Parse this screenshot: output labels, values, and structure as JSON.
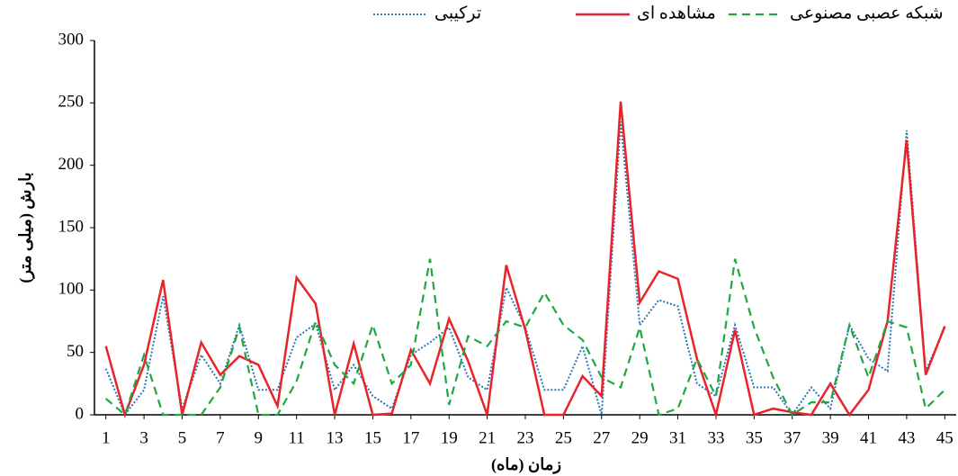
{
  "chart_data": {
    "type": "line",
    "xlabel": "زمان (ماه)",
    "ylabel": "بارش (میلی متر)",
    "x": [
      1,
      2,
      3,
      4,
      5,
      6,
      7,
      8,
      9,
      10,
      11,
      12,
      13,
      14,
      15,
      16,
      17,
      18,
      19,
      20,
      21,
      22,
      23,
      24,
      25,
      26,
      27,
      28,
      29,
      30,
      31,
      32,
      33,
      34,
      35,
      36,
      37,
      38,
      39,
      40,
      41,
      42,
      43,
      44,
      45
    ],
    "xlim": [
      0.4,
      45.6
    ],
    "xticks": [
      1,
      3,
      5,
      7,
      9,
      11,
      13,
      15,
      17,
      19,
      21,
      23,
      25,
      27,
      29,
      31,
      33,
      35,
      37,
      39,
      41,
      43,
      45
    ],
    "ylim": [
      0,
      300
    ],
    "yticks": [
      0,
      50,
      100,
      150,
      200,
      250,
      300
    ],
    "series": [
      {
        "name": "ترکیبی",
        "color": "#2e75b6",
        "dash": "dotted",
        "values": [
          37,
          0,
          20,
          95,
          5,
          48,
          25,
          72,
          20,
          20,
          62,
          73,
          20,
          40,
          15,
          5,
          48,
          58,
          70,
          30,
          20,
          102,
          70,
          20,
          20,
          55,
          0,
          235,
          72,
          92,
          87,
          25,
          15,
          72,
          22,
          22,
          0,
          22,
          5,
          72,
          45,
          35,
          228,
          35,
          70
        ]
      },
      {
        "name": "مشاهده ای",
        "color": "#e8232a",
        "dash": "solid",
        "values": [
          55,
          0,
          40,
          108,
          0,
          58,
          32,
          47,
          40,
          7,
          110,
          89,
          0,
          57,
          0,
          1,
          52,
          25,
          77,
          43,
          0,
          120,
          68,
          0,
          0,
          31,
          15,
          251,
          90,
          115,
          109,
          45,
          0,
          68,
          0,
          5,
          2,
          0,
          25,
          0,
          20,
          75,
          220,
          32,
          71
        ]
      },
      {
        "name": "شبکه عصبی مصنوعی",
        "color": "#1fa83f",
        "dash": "dashed",
        "values": [
          13,
          0,
          48,
          0,
          0,
          0,
          22,
          70,
          0,
          0,
          27,
          75,
          40,
          25,
          72,
          25,
          40,
          125,
          8,
          63,
          55,
          75,
          70,
          98,
          72,
          60,
          30,
          22,
          70,
          0,
          5,
          45,
          15,
          125,
          70,
          30,
          0,
          10,
          10,
          72,
          30,
          75,
          70,
          5,
          20
        ]
      }
    ]
  }
}
